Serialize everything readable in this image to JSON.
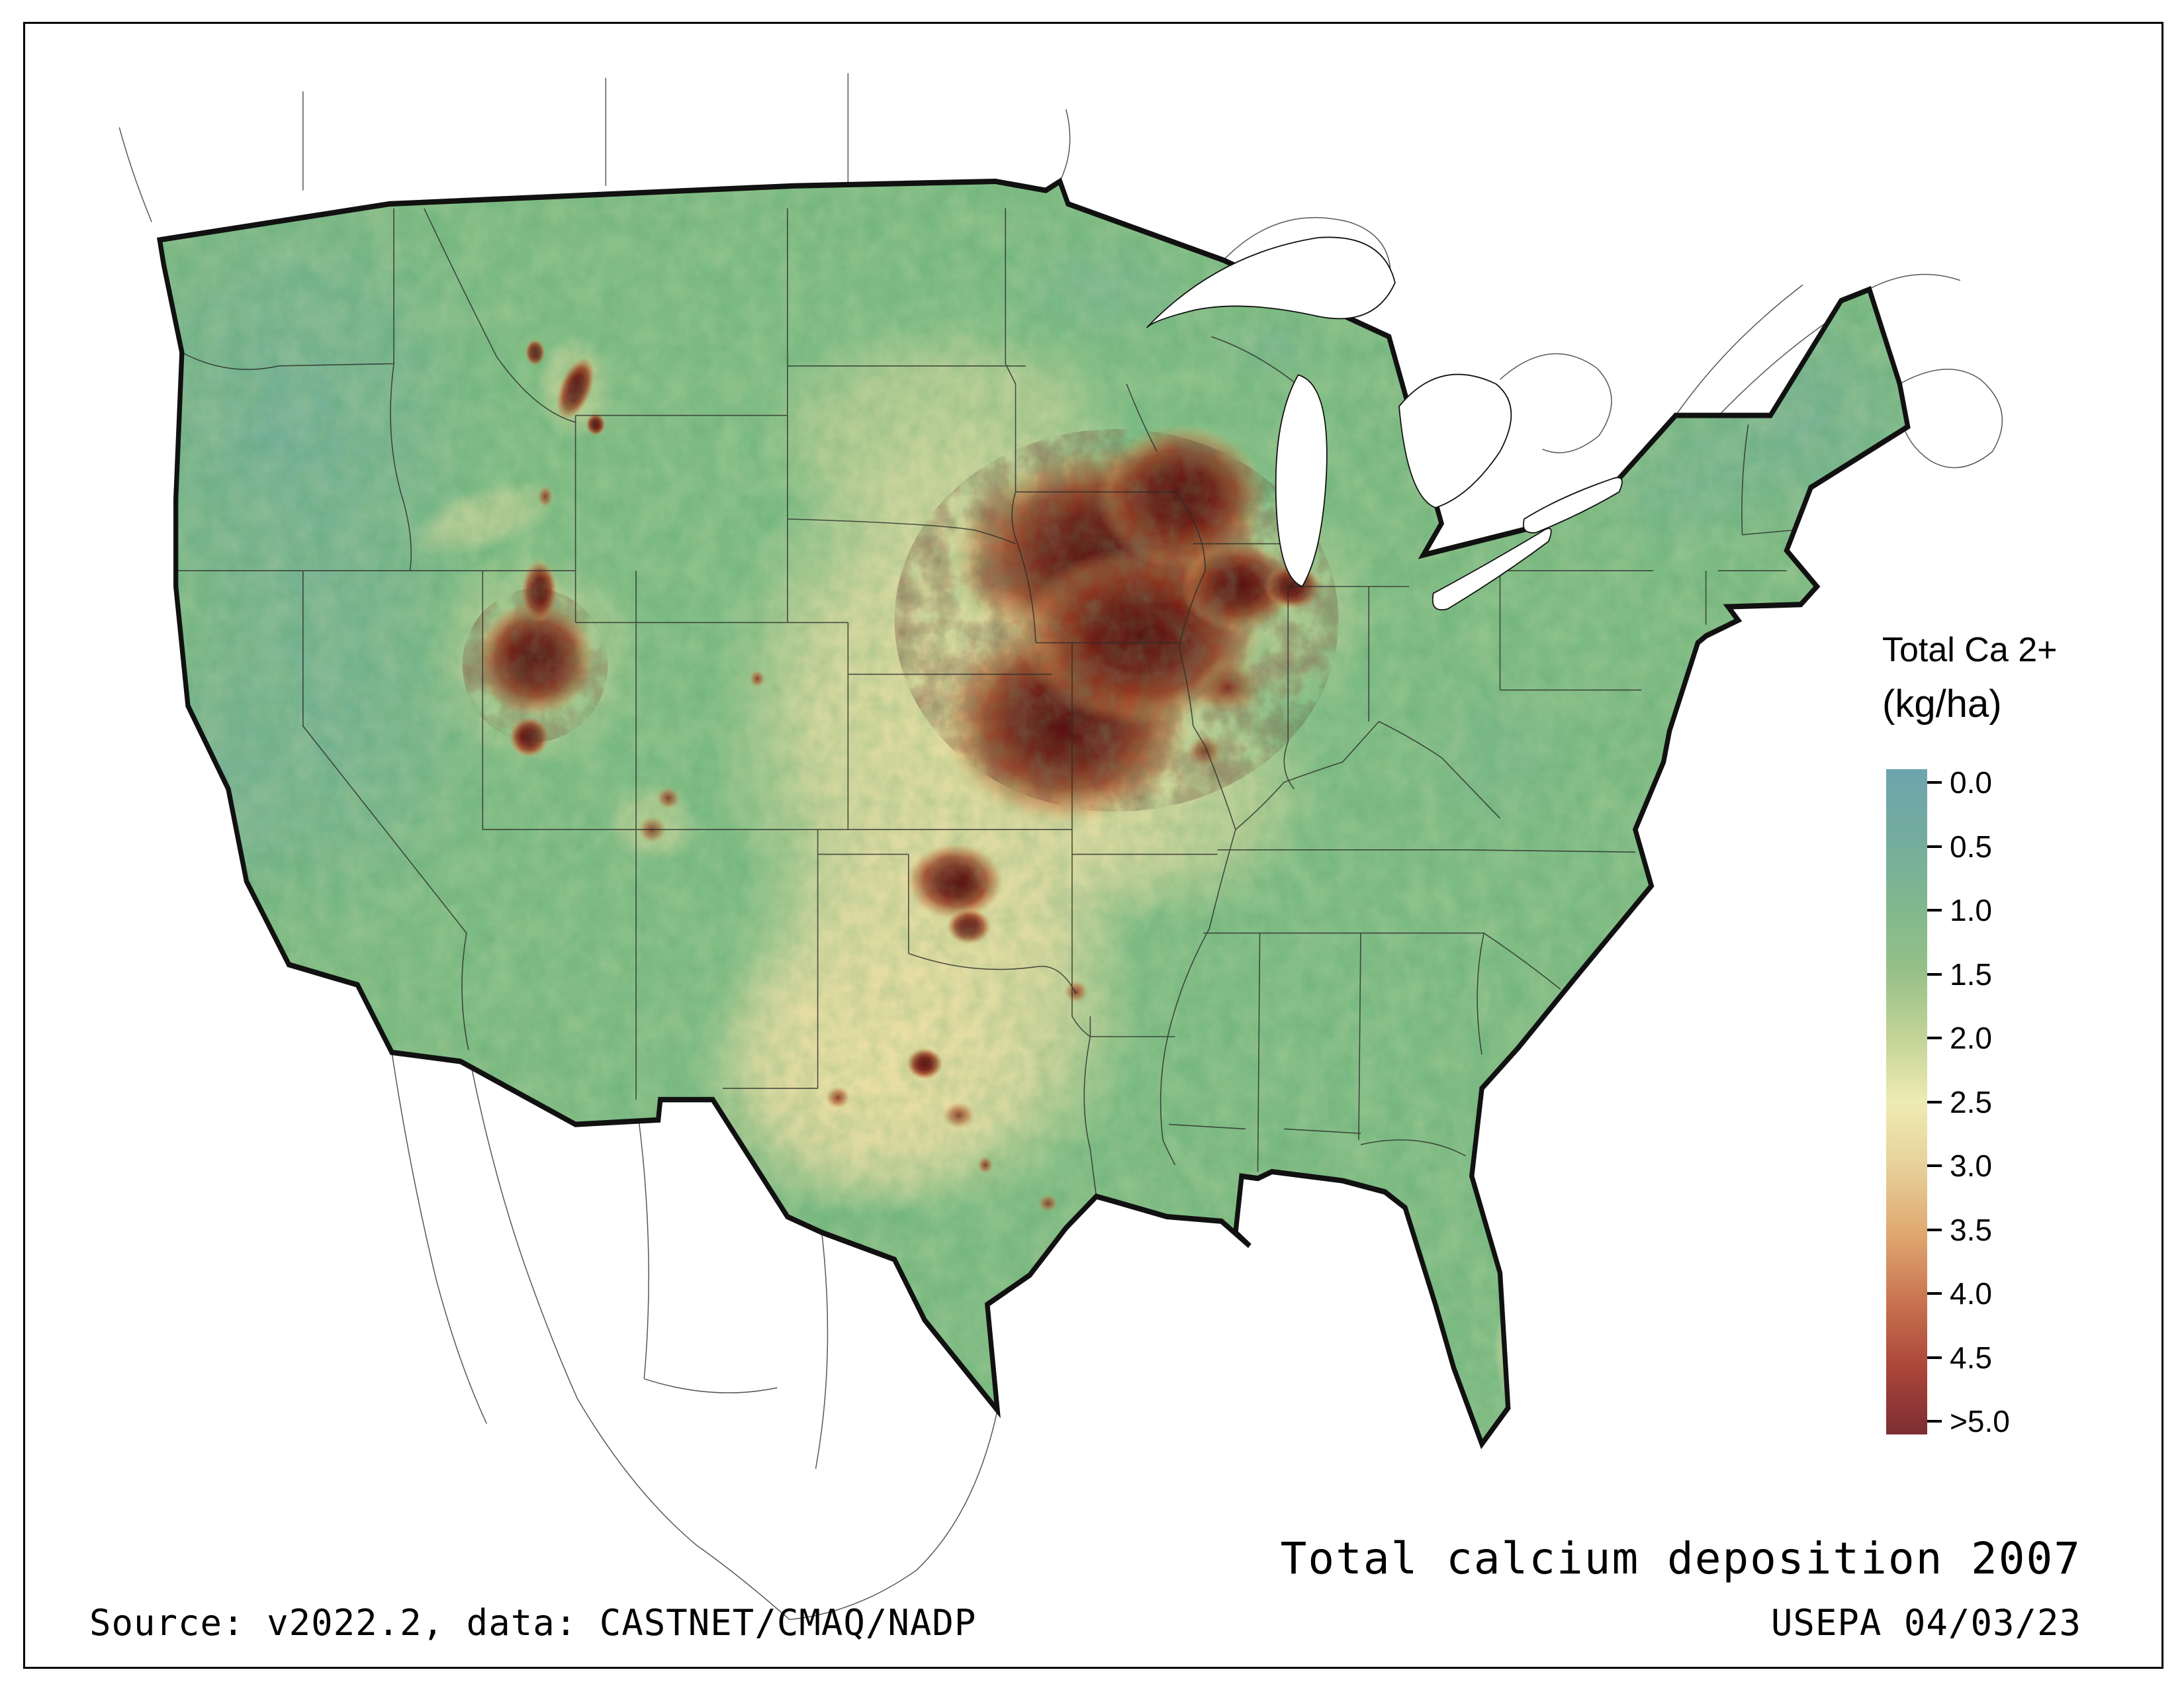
{
  "figure": {
    "map_label": "Contiguous United States map of total calcium deposition",
    "title": "Total calcium deposition 2007",
    "source": "Source: v2022.2, data: CASTNET/CMAQ/NADP",
    "credit": "USEPA 04/03/23"
  },
  "legend": {
    "title": "Total Ca 2+",
    "units": "(kg/ha)",
    "ticks": [
      "0.0",
      "0.5",
      "1.0",
      "1.5",
      "2.0",
      "2.5",
      "3.0",
      "3.5",
      "4.0",
      "4.5",
      ">5.0"
    ],
    "colors": [
      "#6ea4ae",
      "#73ac9e",
      "#7fb78e",
      "#95c088",
      "#c1d396",
      "#eeebb4",
      "#e7d099",
      "#dfa76f",
      "#c97350",
      "#aa4639",
      "#7c2d33"
    ]
  }
}
